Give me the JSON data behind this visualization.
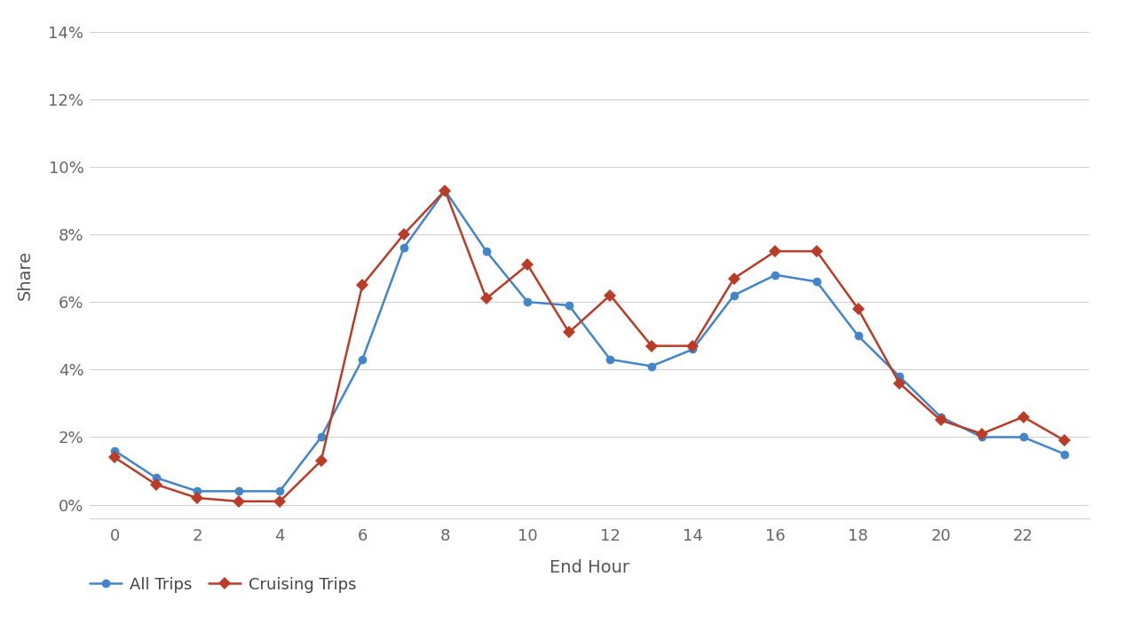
{
  "title": "",
  "xlabel": "End Hour",
  "ylabel": "Share",
  "x_ticks": [
    0,
    2,
    4,
    6,
    8,
    10,
    12,
    14,
    16,
    18,
    20,
    22
  ],
  "ylim": [
    -0.004,
    0.14
  ],
  "yticks": [
    0,
    0.02,
    0.04,
    0.06,
    0.08,
    0.1,
    0.12,
    0.14
  ],
  "all_trips_x": [
    0,
    1,
    2,
    3,
    4,
    5,
    6,
    7,
    8,
    9,
    10,
    11,
    12,
    13,
    14,
    15,
    16,
    17,
    18,
    19,
    20,
    21,
    22,
    23
  ],
  "all_trips_y": [
    0.016,
    0.008,
    0.004,
    0.004,
    0.004,
    0.02,
    0.043,
    0.076,
    0.093,
    0.075,
    0.06,
    0.059,
    0.043,
    0.041,
    0.046,
    0.062,
    0.068,
    0.066,
    0.05,
    0.038,
    0.026,
    0.02,
    0.02,
    0.015
  ],
  "cruising_x": [
    0,
    1,
    2,
    3,
    4,
    5,
    6,
    7,
    8,
    9,
    10,
    11,
    12,
    13,
    14,
    15,
    16,
    17,
    18,
    19,
    20,
    21,
    22,
    23
  ],
  "cruising_y": [
    0.014,
    0.006,
    0.002,
    0.001,
    0.001,
    0.013,
    0.065,
    0.08,
    0.093,
    0.061,
    0.071,
    0.051,
    0.062,
    0.047,
    0.047,
    0.067,
    0.075,
    0.075,
    0.058,
    0.036,
    0.025,
    0.021,
    0.026,
    0.019
  ],
  "all_trips_color": "#4285c8",
  "cruising_color": "#b83c27",
  "background_color": "#ffffff",
  "grid_color": "#d0d0d0",
  "legend_labels": [
    "All Trips",
    "Cruising Trips"
  ],
  "line_width": 1.8,
  "marker_size_all": 7,
  "marker_size_cruising": 7
}
